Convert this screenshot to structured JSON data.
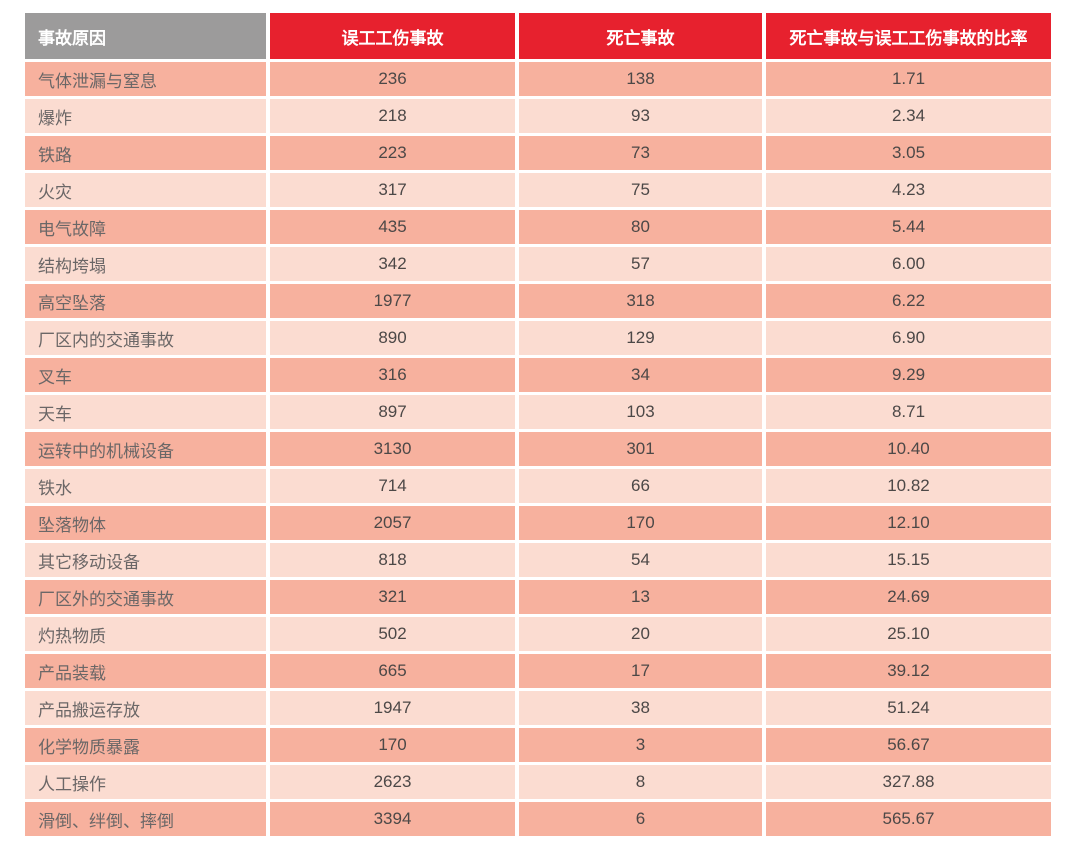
{
  "colors": {
    "header_gray": "#9c9b9b",
    "header_red": "#e7212e",
    "row_dark": "#f7b19e",
    "row_light": "#fbdcd1",
    "label_gray": "#6b6767",
    "number_gray": "#4c4847",
    "background": "#ffffff"
  },
  "chart_data": {
    "type": "table",
    "columns": [
      "事故原因",
      "误工工伤事故",
      "死亡事故",
      "死亡事故与误工工伤事故的比率"
    ],
    "rows": [
      {
        "cause": "气体泄漏与窒息",
        "lost_time": "236",
        "fatal": "138",
        "ratio": "1.71"
      },
      {
        "cause": "爆炸",
        "lost_time": "218",
        "fatal": "93",
        "ratio": "2.34"
      },
      {
        "cause": "铁路",
        "lost_time": "223",
        "fatal": "73",
        "ratio": "3.05"
      },
      {
        "cause": "火灾",
        "lost_time": "317",
        "fatal": "75",
        "ratio": "4.23"
      },
      {
        "cause": "电气故障",
        "lost_time": "435",
        "fatal": "80",
        "ratio": "5.44"
      },
      {
        "cause": "结构垮塌",
        "lost_time": "342",
        "fatal": "57",
        "ratio": "6.00"
      },
      {
        "cause": "高空坠落",
        "lost_time": "1977",
        "fatal": "318",
        "ratio": "6.22"
      },
      {
        "cause": "厂区内的交通事故",
        "lost_time": "890",
        "fatal": "129",
        "ratio": "6.90"
      },
      {
        "cause": "叉车",
        "lost_time": "316",
        "fatal": "34",
        "ratio": "9.29"
      },
      {
        "cause": "天车",
        "lost_time": "897",
        "fatal": "103",
        "ratio": "8.71"
      },
      {
        "cause": "运转中的机械设备",
        "lost_time": "3130",
        "fatal": "301",
        "ratio": "10.40"
      },
      {
        "cause": "铁水",
        "lost_time": "714",
        "fatal": "66",
        "ratio": "10.82"
      },
      {
        "cause": "坠落物体",
        "lost_time": "2057",
        "fatal": "170",
        "ratio": "12.10"
      },
      {
        "cause": "其它移动设备",
        "lost_time": "818",
        "fatal": "54",
        "ratio": "15.15"
      },
      {
        "cause": "厂区外的交通事故",
        "lost_time": "321",
        "fatal": "13",
        "ratio": "24.69"
      },
      {
        "cause": "灼热物质",
        "lost_time": "502",
        "fatal": "20",
        "ratio": "25.10"
      },
      {
        "cause": "产品装载",
        "lost_time": "665",
        "fatal": "17",
        "ratio": "39.12"
      },
      {
        "cause": "产品搬运存放",
        "lost_time": "1947",
        "fatal": "38",
        "ratio": "51.24"
      },
      {
        "cause": "化学物质暴露",
        "lost_time": "170",
        "fatal": "3",
        "ratio": "56.67"
      },
      {
        "cause": "人工操作",
        "lost_time": "2623",
        "fatal": "8",
        "ratio": "327.88"
      },
      {
        "cause": "滑倒、绊倒、摔倒",
        "lost_time": "3394",
        "fatal": "6",
        "ratio": "565.67"
      }
    ]
  }
}
